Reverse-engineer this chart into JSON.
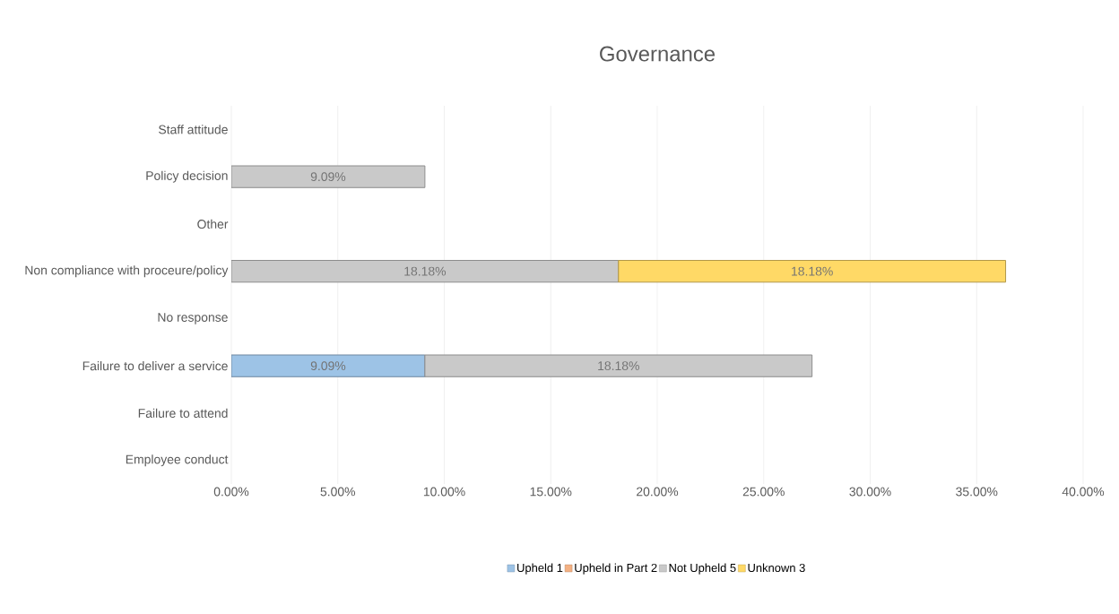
{
  "chart_data": {
    "type": "bar",
    "orientation": "horizontal",
    "stacked": true,
    "title": "Governance",
    "categories": [
      "Staff attitude",
      "Policy decision",
      "Other",
      "Non compliance with proceure/policy",
      "No response",
      "Failure to deliver a service",
      "Failure to attend",
      "Employee conduct"
    ],
    "series": [
      {
        "name": "Upheld 1",
        "color": "#9dc3e6",
        "values": [
          null,
          null,
          null,
          null,
          null,
          9.09,
          null,
          null
        ],
        "value_labels": [
          null,
          null,
          null,
          null,
          null,
          "9.09%",
          null,
          null
        ]
      },
      {
        "name": "Upheld in Part 2",
        "color": "#f4b183",
        "values": [
          null,
          null,
          null,
          null,
          null,
          null,
          null,
          null
        ]
      },
      {
        "name": "Not Upheld 5",
        "color": "#c9c9c9",
        "values": [
          null,
          9.09,
          null,
          18.18,
          null,
          18.18,
          null,
          null
        ],
        "value_labels": [
          null,
          "9.09%",
          null,
          "18.18%",
          null,
          "18.18%",
          null,
          null
        ]
      },
      {
        "name": "Unknown 3",
        "color": "#ffd966",
        "values": [
          null,
          null,
          null,
          18.18,
          null,
          null,
          null,
          null
        ],
        "value_labels": [
          null,
          null,
          null,
          "18.18%",
          null,
          null,
          null,
          null
        ]
      }
    ],
    "xlim": [
      0,
      40
    ],
    "xticks": [
      {
        "value": 0,
        "label": "0.00%"
      },
      {
        "value": 5,
        "label": "5.00%"
      },
      {
        "value": 10,
        "label": "10.00%"
      },
      {
        "value": 15,
        "label": "15.00%"
      },
      {
        "value": 20,
        "label": "20.00%"
      },
      {
        "value": 25,
        "label": "25.00%"
      },
      {
        "value": 30,
        "label": "30.00%"
      },
      {
        "value": 35,
        "label": "35.00%"
      },
      {
        "value": 40,
        "label": "40.00%"
      }
    ],
    "grid": "x",
    "legend": "bottom"
  }
}
